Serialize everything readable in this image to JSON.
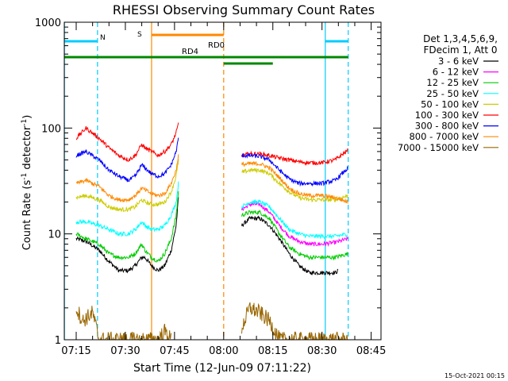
{
  "title": "RHESSI Observing Summary Count Rates",
  "xlabel": "Start Time (12-Jun-09 07:11:22)",
  "ylabel_main": "Count Rate (s",
  "ylabel_sup1": "-1",
  "ylabel_mid": " detector",
  "ylabel_sup2": "-1",
  "ylabel_end": ")",
  "datestamp": "15-Oct-2021 00:15",
  "legend_header": [
    "Det 1,3,4,5,6,9,",
    "FDecim 1, Att 0"
  ],
  "y_ticks": [
    "1",
    "10",
    "100",
    "1000"
  ],
  "x_ticks": [
    "07:15",
    "07:30",
    "07:45",
    "08:00",
    "08:15",
    "08:30",
    "08:45"
  ],
  "annotations": {
    "saa": "S",
    "night": "N",
    "rd0": "RD0",
    "rd4": "RD4"
  },
  "chart_data": {
    "type": "line",
    "title": "RHESSI Observing Summary Count Rates",
    "xlabel": "Start Time (12-Jun-09 07:11:22)",
    "ylabel": "Count Rate (s-1 detector-1)",
    "xlim": [
      "07:11:22",
      "08:48:30"
    ],
    "ylim": [
      1,
      1000
    ],
    "yscale": "log",
    "grid": false,
    "legend_position": "right",
    "x_minutes_after": "07:00",
    "segments": [
      [
        15,
        46.2
      ],
      [
        65.5,
        98
      ]
    ],
    "series": [
      {
        "name": "3 - 6 keV",
        "color": "#000000",
        "points": [
          [
            15,
            9
          ],
          [
            18,
            8.5
          ],
          [
            22,
            7
          ],
          [
            25,
            5.5
          ],
          [
            28,
            4.5
          ],
          [
            31,
            4.5
          ],
          [
            33,
            5
          ],
          [
            35,
            6
          ],
          [
            36,
            6
          ],
          [
            38,
            5
          ],
          [
            40,
            4.5
          ],
          [
            42,
            5
          ],
          [
            44,
            7
          ],
          [
            45.5,
            12
          ],
          [
            46.2,
            22
          ],
          [
            65.5,
            12
          ],
          [
            68,
            14
          ],
          [
            71,
            14
          ],
          [
            74,
            12
          ],
          [
            77,
            9
          ],
          [
            80,
            6.5
          ],
          [
            83,
            5
          ],
          [
            86,
            4.3
          ],
          [
            90,
            4.3
          ],
          [
            94,
            4.3
          ],
          [
            95,
            4.5
          ]
        ]
      },
      {
        "name": "6 - 12 keV",
        "color": "#ff00ff",
        "points": [
          [
            65.5,
            17
          ],
          [
            68,
            19
          ],
          [
            71,
            19
          ],
          [
            74,
            16
          ],
          [
            77,
            12
          ],
          [
            80,
            9.5
          ],
          [
            83,
            8.5
          ],
          [
            86,
            8
          ],
          [
            90,
            8
          ],
          [
            94,
            8.3
          ],
          [
            98,
            9
          ]
        ]
      },
      {
        "name": "12 - 25 keV",
        "color": "#00cc00",
        "points": [
          [
            15,
            10
          ],
          [
            18,
            9
          ],
          [
            22,
            8
          ],
          [
            25,
            6.5
          ],
          [
            28,
            6
          ],
          [
            31,
            6
          ],
          [
            33,
            6.5
          ],
          [
            35,
            8
          ],
          [
            36,
            7
          ],
          [
            38,
            6
          ],
          [
            40,
            5.5
          ],
          [
            42,
            6.5
          ],
          [
            44,
            9
          ],
          [
            45.5,
            15
          ],
          [
            46.2,
            25
          ],
          [
            65.5,
            15
          ],
          [
            68,
            16
          ],
          [
            71,
            16
          ],
          [
            74,
            14
          ],
          [
            77,
            10
          ],
          [
            80,
            7.5
          ],
          [
            83,
            6.5
          ],
          [
            86,
            6
          ],
          [
            90,
            6
          ],
          [
            94,
            6
          ],
          [
            98,
            6.5
          ]
        ]
      },
      {
        "name": "25 - 50 keV",
        "color": "#00ffff",
        "points": [
          [
            15,
            13
          ],
          [
            18,
            13
          ],
          [
            22,
            12
          ],
          [
            25,
            11
          ],
          [
            28,
            10
          ],
          [
            31,
            10
          ],
          [
            33,
            11
          ],
          [
            35,
            13
          ],
          [
            36,
            12
          ],
          [
            38,
            11
          ],
          [
            40,
            11
          ],
          [
            42,
            12
          ],
          [
            44,
            15
          ],
          [
            45.5,
            20
          ],
          [
            46.2,
            30
          ],
          [
            65.5,
            18
          ],
          [
            68,
            20
          ],
          [
            71,
            20
          ],
          [
            74,
            18
          ],
          [
            77,
            14
          ],
          [
            80,
            11
          ],
          [
            83,
            10
          ],
          [
            86,
            9.5
          ],
          [
            90,
            9.5
          ],
          [
            94,
            9.5
          ],
          [
            98,
            10
          ]
        ]
      },
      {
        "name": "50 - 100 keV",
        "color": "#cccc00",
        "points": [
          [
            15,
            22
          ],
          [
            18,
            23
          ],
          [
            22,
            21
          ],
          [
            25,
            18
          ],
          [
            28,
            17
          ],
          [
            31,
            17
          ],
          [
            33,
            18
          ],
          [
            35,
            21
          ],
          [
            36,
            20
          ],
          [
            38,
            19
          ],
          [
            40,
            19
          ],
          [
            42,
            20
          ],
          [
            44,
            25
          ],
          [
            45.5,
            35
          ],
          [
            46.2,
            50
          ],
          [
            65.5,
            38
          ],
          [
            68,
            40
          ],
          [
            71,
            40
          ],
          [
            74,
            37
          ],
          [
            77,
            30
          ],
          [
            80,
            25
          ],
          [
            83,
            22
          ],
          [
            86,
            21
          ],
          [
            90,
            21
          ],
          [
            94,
            21
          ],
          [
            98,
            23
          ]
        ]
      },
      {
        "name": "100 - 300 keV",
        "color": "#ff0000",
        "points": [
          [
            15,
            80
          ],
          [
            18,
            100
          ],
          [
            22,
            80
          ],
          [
            25,
            65
          ],
          [
            28,
            55
          ],
          [
            31,
            50
          ],
          [
            33,
            55
          ],
          [
            35,
            70
          ],
          [
            36,
            65
          ],
          [
            38,
            60
          ],
          [
            40,
            55
          ],
          [
            42,
            60
          ],
          [
            44,
            70
          ],
          [
            45.5,
            90
          ],
          [
            46.2,
            110
          ],
          [
            65.5,
            55
          ],
          [
            68,
            57
          ],
          [
            71,
            57
          ],
          [
            74,
            55
          ],
          [
            77,
            52
          ],
          [
            80,
            50
          ],
          [
            83,
            48
          ],
          [
            86,
            47
          ],
          [
            90,
            47
          ],
          [
            94,
            50
          ],
          [
            98,
            62
          ]
        ]
      },
      {
        "name": "300 - 800 keV",
        "color": "#0000ff",
        "points": [
          [
            15,
            55
          ],
          [
            18,
            60
          ],
          [
            22,
            50
          ],
          [
            25,
            40
          ],
          [
            28,
            35
          ],
          [
            31,
            32
          ],
          [
            33,
            35
          ],
          [
            35,
            45
          ],
          [
            36,
            42
          ],
          [
            38,
            37
          ],
          [
            40,
            35
          ],
          [
            42,
            37
          ],
          [
            44,
            45
          ],
          [
            45.5,
            60
          ],
          [
            46.2,
            80
          ],
          [
            65.5,
            55
          ],
          [
            68,
            55
          ],
          [
            71,
            54
          ],
          [
            74,
            50
          ],
          [
            77,
            40
          ],
          [
            80,
            33
          ],
          [
            83,
            30
          ],
          [
            86,
            30
          ],
          [
            90,
            30
          ],
          [
            94,
            32
          ],
          [
            98,
            42
          ]
        ]
      },
      {
        "name": "800 - 7000 keV",
        "color": "#ff8800",
        "points": [
          [
            15,
            30
          ],
          [
            18,
            32
          ],
          [
            22,
            28
          ],
          [
            25,
            23
          ],
          [
            28,
            21
          ],
          [
            31,
            21
          ],
          [
            33,
            23
          ],
          [
            35,
            27
          ],
          [
            36,
            26
          ],
          [
            38,
            24
          ],
          [
            40,
            23
          ],
          [
            42,
            24
          ],
          [
            44,
            30
          ],
          [
            45.5,
            40
          ],
          [
            46.2,
            55
          ],
          [
            65.5,
            45
          ],
          [
            68,
            46
          ],
          [
            71,
            46
          ],
          [
            74,
            42
          ],
          [
            77,
            34
          ],
          [
            80,
            27
          ],
          [
            83,
            24
          ],
          [
            86,
            23
          ],
          [
            90,
            23
          ],
          [
            94,
            22
          ],
          [
            98,
            20
          ]
        ]
      },
      {
        "name": "7000 - 15000 keV",
        "color": "#996600",
        "points": [
          [
            15,
            2
          ],
          [
            17,
            1.5
          ],
          [
            20,
            1.8
          ],
          [
            22,
            1
          ],
          [
            40,
            1
          ],
          [
            42,
            1.2
          ],
          [
            44,
            1
          ],
          [
            65.5,
            1.3
          ],
          [
            68,
            2
          ],
          [
            71,
            1.8
          ],
          [
            74,
            1.5
          ],
          [
            77,
            1
          ],
          [
            98,
            1
          ]
        ]
      }
    ],
    "flags": [
      {
        "label": "N",
        "color": "#00ccff",
        "ranges": [
          [
            11.4,
            21.5
          ],
          [
            91,
            98
          ]
        ],
        "level_frac": 0.94
      },
      {
        "label": "S",
        "color": "#ff8800",
        "ranges": [
          [
            38,
            60
          ]
        ],
        "level_frac": 0.96
      },
      {
        "label": "RD0",
        "color": "#008800",
        "ranges": [
          [
            11.4,
            98
          ]
        ],
        "level_frac": 0.89
      },
      {
        "label": "RD4",
        "color": "#008800",
        "ranges": [
          [
            60,
            75
          ]
        ],
        "level_frac": 0.87
      }
    ],
    "vlines": [
      {
        "x": 11.4,
        "color": "#00ccff",
        "style": "solid"
      },
      {
        "x": 21.5,
        "color": "#00ccff",
        "style": "dashed"
      },
      {
        "x": 38,
        "color": "#ff8800",
        "style": "solid"
      },
      {
        "x": 60,
        "color": "#ff8800",
        "style": "dashed"
      },
      {
        "x": 91,
        "color": "#00ccff",
        "style": "solid"
      },
      {
        "x": 98,
        "color": "#00ccff",
        "style": "dashed"
      }
    ]
  }
}
